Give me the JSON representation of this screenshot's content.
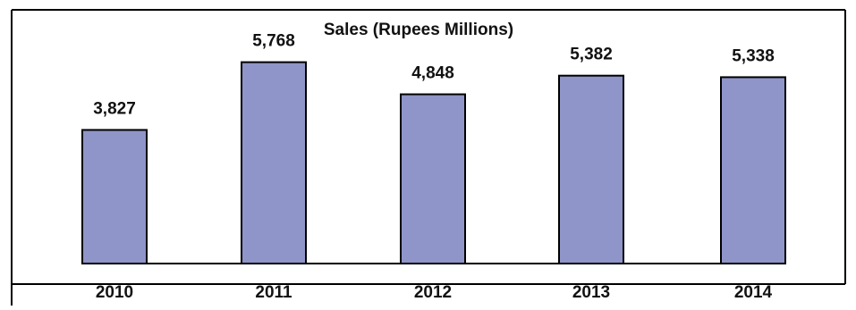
{
  "chart_data": {
    "type": "bar",
    "title": "Sales (Rupees Millions)",
    "categories": [
      "2010",
      "2011",
      "2012",
      "2013",
      "2014"
    ],
    "values": [
      3827,
      5768,
      4848,
      5382,
      5338
    ],
    "value_labels": [
      "3,827",
      "5,768",
      "4,848",
      "5,382",
      "5,338"
    ],
    "xlabel": "",
    "ylabel": "",
    "ylim": [
      0,
      6500
    ],
    "grid": false,
    "legend": "none",
    "colors": {
      "bar_fill": "#8f95c8",
      "bar_stroke": "#000000",
      "frame": "#000000",
      "text": "#111111"
    }
  }
}
